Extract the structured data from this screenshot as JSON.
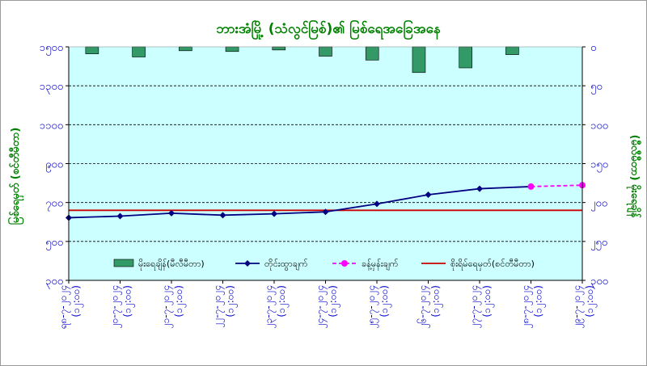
{
  "chart_data": {
    "type": "bar-line-combo",
    "title": "ဘားအံမြို့ (သံလွင်မြစ်)၏ မြစ်ရေအခြေအနေ",
    "left_axis": {
      "label": "မြစ်ရေမှတ် (စင်တီမီတာ)",
      "ylim": [
        300,
        1500
      ],
      "ticks": [
        300,
        500,
        700,
        900,
        1100,
        1300,
        1500
      ],
      "tick_labels": [
        "၃၀၀",
        "၅၀၀",
        "၇၀၀",
        "၉၀၀",
        "၁၁၀၀",
        "၁၃၀၀",
        "၁၅၀၀"
      ]
    },
    "right_axis": {
      "label": "(မီလီမီတာ) မိုးရေချိန်",
      "ylim": [
        0,
        300
      ],
      "inverted": true,
      "ticks": [
        0,
        50,
        100,
        150,
        200,
        250,
        300
      ],
      "tick_labels": [
        "၀",
        "၅၀",
        "၁၀၀",
        "၁၅၀",
        "၂၀၀",
        "၂၅၀",
        "၃၀၀"
      ]
    },
    "categories": [
      "ရ၈-၇-၂၀၂၄",
      "၂၀-၇-၂၀၂၄",
      "၂၁-၇-၂၀၂၄",
      "၂၂-၇-၂၀၂၄",
      "၂၃-၇-၂၀၂၄",
      "၂၄-၇-၂၀၂၄",
      "၂၅-၇-၂၀၂၄",
      "၂၆-၇-၂၀၂၄",
      "၂၇-၇-၂၀၂၄",
      "၂၈-၇-၂၀၂၄",
      "၂၉-၇-၂၀၂၄"
    ],
    "category_sublabel": "(၁၂:၀၀)",
    "series": [
      {
        "name": "မိုးရေချိန်(မီလီမီတာ)",
        "type": "bar",
        "axis": "right",
        "color": "#339966",
        "values": [
          9,
          13,
          5,
          6,
          4,
          12,
          17,
          33,
          27,
          10,
          null
        ]
      },
      {
        "name": "တိုင်းထွာချက်",
        "type": "line",
        "axis": "left",
        "color": "#000080",
        "values": [
          622,
          630,
          645,
          635,
          642,
          652,
          693,
          740,
          771,
          782,
          null
        ]
      },
      {
        "name": "ခန့်မှန်းချက်",
        "type": "line-dashed",
        "axis": "left",
        "color": "#ff00ff",
        "values": [
          null,
          null,
          null,
          null,
          null,
          null,
          null,
          null,
          null,
          782,
          789
        ]
      },
      {
        "name": "စိုးရိမ်ရေမှတ်(စင်တီမီတာ)",
        "type": "hline",
        "axis": "left",
        "color": "#cc0000",
        "value": 660
      }
    ],
    "grid": "horizontal-dashed",
    "legend": "bottom-inside"
  }
}
